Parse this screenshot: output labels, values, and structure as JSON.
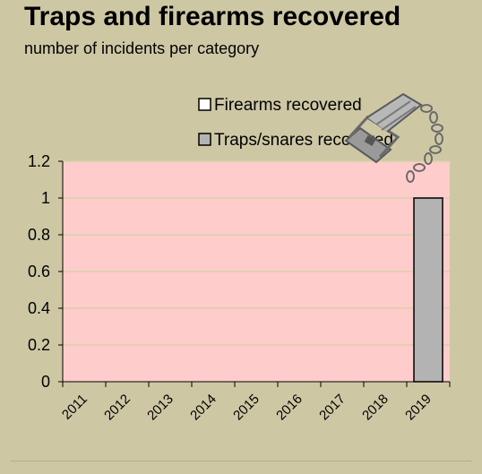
{
  "header": {
    "title": "Traps and firearms recovered",
    "subtitle": "number of incidents per category"
  },
  "colors": {
    "background": "#cdc7a3",
    "plot_area": "#ffcccc",
    "traps_fill": "#b3b3b3",
    "firearms_fill": "#ffffff",
    "gridline": "#d9cfa6"
  },
  "icons": {
    "illustration": "trap-with-chain-icon"
  },
  "chart_data": {
    "type": "bar",
    "categories": [
      "2011",
      "2012",
      "2013",
      "2014",
      "2015",
      "2016",
      "2017",
      "2018",
      "2019"
    ],
    "series": [
      {
        "name": "Firearms recovered",
        "values": [
          0,
          0,
          0,
          0,
          0,
          0,
          0,
          0,
          0
        ]
      },
      {
        "name": "Traps/snares recovered",
        "values": [
          0,
          0,
          0,
          0,
          0,
          0,
          0,
          0,
          1
        ]
      }
    ],
    "yticks": [
      "0",
      "0.2",
      "0.4",
      "0.6",
      "0.8",
      "1",
      "1.2"
    ],
    "ylim": [
      0,
      1.2
    ],
    "grid": true,
    "legend_position": "top-center"
  }
}
